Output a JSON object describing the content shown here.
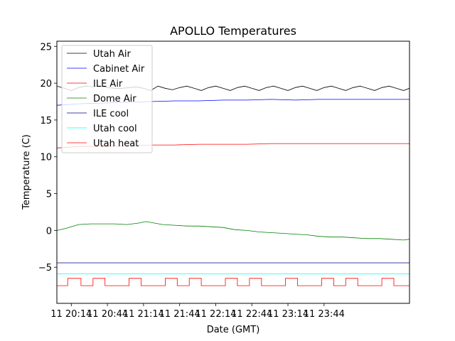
{
  "chart_data": {
    "type": "line",
    "title": "APOLLO Temperatures",
    "xlabel": "Date (GMT)",
    "ylabel": "Temperature (C)",
    "xlim_minutes": [
      1202,
      1495
    ],
    "ylim": [
      -9.9,
      25.7
    ],
    "x_ticks": [
      {
        "minutes": 1214,
        "label": "11 20:14"
      },
      {
        "minutes": 1244,
        "label": "11 20:44"
      },
      {
        "minutes": 1274,
        "label": "11 21:14"
      },
      {
        "minutes": 1304,
        "label": "11 21:44"
      },
      {
        "minutes": 1334,
        "label": "11 22:14"
      },
      {
        "minutes": 1364,
        "label": "11 22:44"
      },
      {
        "minutes": 1394,
        "label": "11 23:14"
      },
      {
        "minutes": 1424,
        "label": "11 23:44"
      }
    ],
    "y_ticks": [
      {
        "value": -5,
        "label": "−5"
      },
      {
        "value": 0,
        "label": "0"
      },
      {
        "value": 5,
        "label": "5"
      },
      {
        "value": 10,
        "label": "10"
      },
      {
        "value": 15,
        "label": "15"
      },
      {
        "value": 20,
        "label": "20"
      },
      {
        "value": 25,
        "label": "25"
      }
    ],
    "legend_position": "top-left",
    "series": [
      {
        "name": "Utah Air",
        "color": "#000000",
        "x": [
          1202,
          1208,
          1214,
          1220,
          1226,
          1232,
          1238,
          1244,
          1250,
          1256,
          1262,
          1268,
          1274,
          1280,
          1286,
          1292,
          1298,
          1304,
          1310,
          1316,
          1322,
          1328,
          1334,
          1340,
          1346,
          1352,
          1358,
          1364,
          1370,
          1376,
          1382,
          1388,
          1394,
          1400,
          1406,
          1412,
          1418,
          1424,
          1430,
          1436,
          1442,
          1448,
          1454,
          1460,
          1466,
          1472,
          1478,
          1484,
          1490,
          1495
        ],
        "y": [
          19.6,
          19.3,
          19.0,
          19.4,
          19.6,
          19.5,
          19.6,
          19.4,
          19.3,
          19.3,
          19.4,
          19.5,
          19.3,
          19.0,
          19.6,
          19.3,
          19.1,
          19.4,
          19.6,
          19.3,
          19.0,
          19.4,
          19.6,
          19.3,
          19.0,
          19.4,
          19.6,
          19.3,
          19.0,
          19.4,
          19.6,
          19.3,
          19.0,
          19.4,
          19.6,
          19.3,
          19.0,
          19.4,
          19.6,
          19.3,
          19.0,
          19.4,
          19.6,
          19.3,
          19.0,
          19.4,
          19.6,
          19.3,
          19.0,
          19.3
        ]
      },
      {
        "name": "Cabinet Air",
        "color": "#0000ff",
        "x": [
          1202,
          1220,
          1240,
          1260,
          1280,
          1300,
          1320,
          1340,
          1360,
          1380,
          1400,
          1420,
          1440,
          1460,
          1480,
          1495
        ],
        "y": [
          17.0,
          17.2,
          17.3,
          17.4,
          17.5,
          17.6,
          17.6,
          17.7,
          17.7,
          17.8,
          17.7,
          17.8,
          17.8,
          17.8,
          17.8,
          17.8
        ]
      },
      {
        "name": "ILE Air",
        "color": "#ff0000",
        "x": [
          1202,
          1220,
          1240,
          1260,
          1280,
          1300,
          1320,
          1340,
          1360,
          1380,
          1400,
          1420,
          1440,
          1460,
          1480,
          1495
        ],
        "y": [
          11.2,
          11.4,
          11.4,
          11.5,
          11.6,
          11.6,
          11.7,
          11.7,
          11.7,
          11.8,
          11.8,
          11.8,
          11.8,
          11.8,
          11.8,
          11.8
        ]
      },
      {
        "name": "Dome Air",
        "color": "#008000",
        "x": [
          1202,
          1210,
          1220,
          1230,
          1240,
          1250,
          1260,
          1270,
          1276,
          1290,
          1300,
          1310,
          1320,
          1330,
          1340,
          1350,
          1360,
          1370,
          1380,
          1390,
          1400,
          1410,
          1420,
          1430,
          1440,
          1450,
          1460,
          1470,
          1480,
          1490,
          1495
        ],
        "y": [
          0.0,
          0.3,
          0.8,
          0.9,
          0.9,
          0.9,
          0.8,
          1.0,
          1.2,
          0.8,
          0.7,
          0.6,
          0.6,
          0.5,
          0.4,
          0.1,
          0.0,
          -0.2,
          -0.3,
          -0.4,
          -0.5,
          -0.6,
          -0.8,
          -0.9,
          -0.9,
          -1.0,
          -1.1,
          -1.1,
          -1.2,
          -1.3,
          -1.2
        ]
      },
      {
        "name": "ILE cool",
        "color": "#00008b",
        "x": [
          1202,
          1495
        ],
        "y": [
          -4.4,
          -4.4
        ]
      },
      {
        "name": "Utah cool",
        "color": "#00ffff",
        "x": [
          1202,
          1495
        ],
        "y": [
          -5.9,
          -5.9
        ]
      },
      {
        "name": "Utah heat",
        "color": "#ff0000",
        "x": [
          1202,
          1211,
          1211,
          1222,
          1222,
          1232,
          1232,
          1242,
          1242,
          1252,
          1252,
          1262,
          1262,
          1272,
          1272,
          1282,
          1282,
          1292,
          1292,
          1302,
          1302,
          1312,
          1312,
          1322,
          1322,
          1332,
          1332,
          1342,
          1342,
          1352,
          1352,
          1362,
          1362,
          1372,
          1372,
          1382,
          1382,
          1392,
          1392,
          1402,
          1402,
          1412,
          1412,
          1422,
          1422,
          1432,
          1432,
          1442,
          1442,
          1452,
          1452,
          1462,
          1462,
          1472,
          1472,
          1482,
          1482,
          1495
        ],
        "y": [
          -7.5,
          -7.5,
          -6.5,
          -6.5,
          -7.5,
          -7.5,
          -6.5,
          -6.5,
          -7.5,
          -7.5,
          -7.5,
          -7.5,
          -6.5,
          -6.5,
          -7.5,
          -7.5,
          -7.5,
          -7.5,
          -6.5,
          -6.5,
          -7.5,
          -7.5,
          -6.5,
          -6.5,
          -7.5,
          -7.5,
          -7.5,
          -7.5,
          -6.5,
          -6.5,
          -7.5,
          -7.5,
          -6.5,
          -6.5,
          -7.5,
          -7.5,
          -7.5,
          -7.5,
          -6.5,
          -6.5,
          -7.5,
          -7.5,
          -7.5,
          -7.5,
          -6.5,
          -6.5,
          -7.5,
          -7.5,
          -6.5,
          -6.5,
          -7.5,
          -7.5,
          -7.5,
          -7.5,
          -6.5,
          -6.5,
          -7.5,
          -7.5
        ]
      }
    ]
  }
}
